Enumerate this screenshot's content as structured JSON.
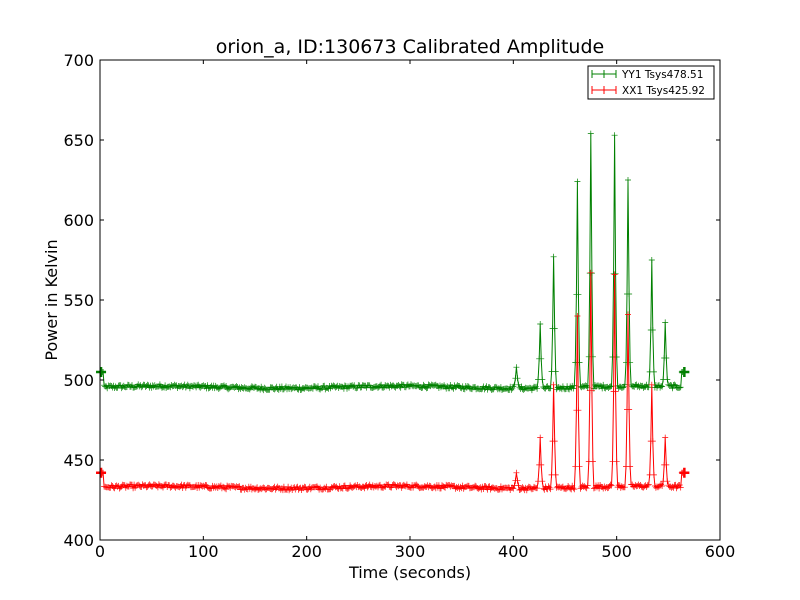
{
  "chart_data": {
    "type": "line",
    "title": "orion_a, ID:130673 Calibrated Amplitude",
    "xlabel": "Time (seconds)",
    "ylabel": "Power in Kelvin",
    "xlim": [
      0,
      600
    ],
    "ylim": [
      400,
      700
    ],
    "xticks": [
      0,
      100,
      200,
      300,
      400,
      500,
      600
    ],
    "yticks": [
      400,
      450,
      500,
      550,
      600,
      650,
      700
    ],
    "grid": false,
    "legend_position": "top-right",
    "series": [
      {
        "name": "YY1 Tsys478.51",
        "color": "#008000",
        "baseline": 495.5,
        "start_value": 505,
        "end_value": 505,
        "x_start": 1,
        "x_end": 564,
        "peaks": [
          {
            "x": 403,
            "value": 508
          },
          {
            "x": 426,
            "value": 535
          },
          {
            "x": 439,
            "value": 577
          },
          {
            "x": 462,
            "value": 624
          },
          {
            "x": 475,
            "value": 654
          },
          {
            "x": 498,
            "value": 653
          },
          {
            "x": 511,
            "value": 625
          },
          {
            "x": 534,
            "value": 575
          },
          {
            "x": 547,
            "value": 536
          }
        ]
      },
      {
        "name": "XX1 Tsys425.92",
        "color": "#ff0000",
        "baseline": 433,
        "start_value": 442,
        "end_value": 442,
        "x_start": 1,
        "x_end": 564,
        "peaks": [
          {
            "x": 403,
            "value": 442
          },
          {
            "x": 426,
            "value": 464
          },
          {
            "x": 439,
            "value": 497
          },
          {
            "x": 462,
            "value": 540
          },
          {
            "x": 475,
            "value": 567
          },
          {
            "x": 498,
            "value": 566
          },
          {
            "x": 511,
            "value": 541
          },
          {
            "x": 534,
            "value": 497
          },
          {
            "x": 547,
            "value": 464
          }
        ]
      }
    ]
  }
}
